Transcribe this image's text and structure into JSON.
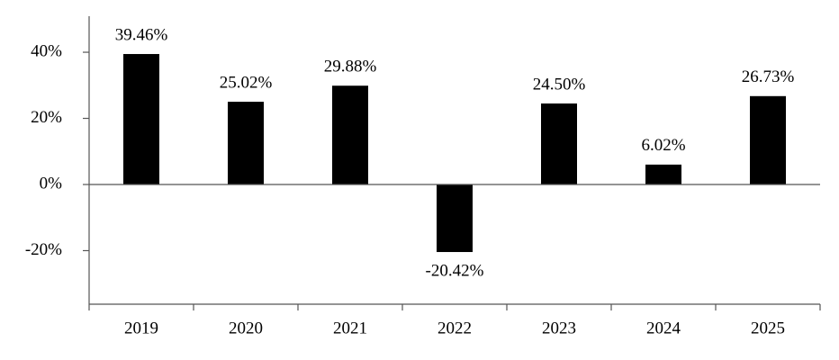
{
  "chart_data": {
    "type": "bar",
    "categories": [
      "2019",
      "2020",
      "2021",
      "2022",
      "2023",
      "2024",
      "2025"
    ],
    "values": [
      39.46,
      25.02,
      29.88,
      -20.42,
      24.5,
      6.02,
      26.73
    ],
    "value_labels": [
      "39.46%",
      "25.02%",
      "29.88%",
      "-20.42%",
      "24.50%",
      "6.02%",
      "26.73%"
    ],
    "color": "#000000",
    "ylim": [
      -36.2,
      50.9
    ],
    "yticks": [
      {
        "value": -20,
        "label": "-20%"
      },
      {
        "value": 0,
        "label": "0%"
      },
      {
        "value": 20,
        "label": "20%"
      },
      {
        "value": 40,
        "label": "40%"
      }
    ]
  }
}
